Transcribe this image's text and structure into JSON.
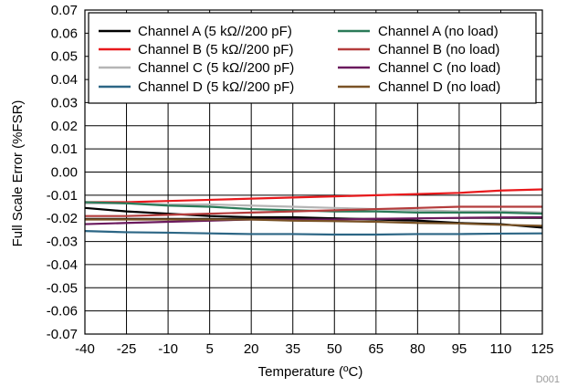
{
  "chart_data": {
    "type": "line",
    "xlabel": "Temperature (ºC)",
    "ylabel": "Full Scale Error (%FSR)",
    "xlim": [
      -40,
      125
    ],
    "ylim": [
      -0.07,
      0.07
    ],
    "x_ticks": [
      -40,
      -25,
      -10,
      5,
      20,
      35,
      50,
      65,
      80,
      95,
      110,
      125
    ],
    "x_tick_labels": [
      "-40",
      "-25",
      "-10",
      "5",
      "20",
      "35",
      "50",
      "65",
      "80",
      "95",
      "110",
      "125"
    ],
    "y_ticks": [
      0.07,
      0.06,
      0.05,
      0.04,
      0.03,
      0.02,
      0.01,
      0.0,
      -0.01,
      -0.02,
      -0.03,
      -0.04,
      -0.05,
      -0.06,
      -0.07
    ],
    "y_tick_labels": [
      "0.07",
      "0.06",
      "0.05",
      "0.04",
      "0.03",
      "0.02",
      "0.01",
      "0.00",
      "-0.01",
      "-0.02",
      "-0.03",
      "-0.04",
      "-0.05",
      "-0.06",
      "-0.07"
    ],
    "grid": true,
    "legend_position": "top",
    "watermark": "D001",
    "x": [
      -40,
      -25,
      -10,
      5,
      20,
      35,
      50,
      65,
      80,
      95,
      110,
      125
    ],
    "series": [
      {
        "name": "Channel A (5 kΩ//200 pF)",
        "color": "#000000",
        "values": [
          -0.0155,
          -0.017,
          -0.018,
          -0.019,
          -0.0195,
          -0.0195,
          -0.02,
          -0.0205,
          -0.021,
          -0.022,
          -0.0225,
          -0.024
        ]
      },
      {
        "name": "Channel B (5 kΩ//200 pF)",
        "color": "#e8191c",
        "values": [
          -0.013,
          -0.013,
          -0.0125,
          -0.012,
          -0.0115,
          -0.011,
          -0.0105,
          -0.01,
          -0.0095,
          -0.009,
          -0.008,
          -0.0075
        ]
      },
      {
        "name": "Channel C (5 kΩ//200 pF)",
        "color": "#b5b5b5",
        "values": [
          -0.0135,
          -0.0135,
          -0.014,
          -0.014,
          -0.0145,
          -0.015,
          -0.0155,
          -0.016,
          -0.0165,
          -0.017,
          -0.017,
          -0.0175
        ]
      },
      {
        "name": "Channel D (5 kΩ//200 pF)",
        "color": "#2c6685",
        "values": [
          -0.0255,
          -0.026,
          -0.0262,
          -0.0265,
          -0.0268,
          -0.0268,
          -0.027,
          -0.027,
          -0.0268,
          -0.0268,
          -0.0266,
          -0.0265
        ]
      },
      {
        "name": "Channel A (no load)",
        "color": "#2a7a58",
        "values": [
          -0.013,
          -0.0135,
          -0.0145,
          -0.015,
          -0.016,
          -0.0165,
          -0.017,
          -0.017,
          -0.0175,
          -0.0175,
          -0.0175,
          -0.018
        ]
      },
      {
        "name": "Channel B (no load)",
        "color": "#b43c3c",
        "values": [
          -0.019,
          -0.019,
          -0.0185,
          -0.018,
          -0.0175,
          -0.017,
          -0.0165,
          -0.016,
          -0.0155,
          -0.015,
          -0.015,
          -0.015
        ]
      },
      {
        "name": "Channel C (no load)",
        "color": "#6b1a5e",
        "values": [
          -0.0225,
          -0.022,
          -0.0215,
          -0.021,
          -0.0205,
          -0.0205,
          -0.0205,
          -0.0202,
          -0.02,
          -0.0198,
          -0.0196,
          -0.0195
        ]
      },
      {
        "name": "Channel D (no load)",
        "color": "#7a5326",
        "values": [
          -0.0205,
          -0.0205,
          -0.0205,
          -0.0205,
          -0.0205,
          -0.021,
          -0.0212,
          -0.0215,
          -0.022,
          -0.0222,
          -0.0228,
          -0.0232
        ]
      }
    ]
  }
}
